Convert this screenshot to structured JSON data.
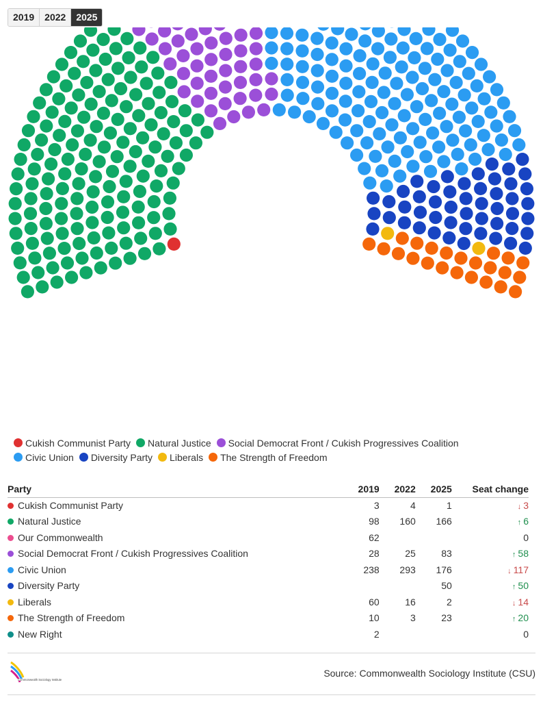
{
  "year_tabs": [
    {
      "label": "2019",
      "active": false
    },
    {
      "label": "2022",
      "active": false
    },
    {
      "label": "2025",
      "active": true
    }
  ],
  "chart_data": {
    "type": "hemicycle",
    "year": "2025",
    "total_seats": 501,
    "series": [
      {
        "name": "Cukish Communist Party",
        "seats": 1,
        "color": "#e03131"
      },
      {
        "name": "Natural Justice",
        "seats": 166,
        "color": "#10a866"
      },
      {
        "name": "Social Democrat Front / Cukish Progressives Coalition",
        "seats": 83,
        "color": "#9b4fd8"
      },
      {
        "name": "Civic Union",
        "seats": 176,
        "color": "#2b9cf2"
      },
      {
        "name": "Diversity Party",
        "seats": 50,
        "color": "#1844c2"
      },
      {
        "name": "Liberals",
        "seats": 2,
        "color": "#f2b90f"
      },
      {
        "name": "The Strength of Freedom",
        "seats": 23,
        "color": "#f5670a"
      }
    ]
  },
  "legend": {
    "rows": [
      [
        {
          "name": "Cukish Communist Party",
          "color": "#e03131"
        },
        {
          "name": "Natural Justice",
          "color": "#10a866"
        },
        {
          "name": "Social Democrat Front / Cukish Progressives Coalition",
          "color": "#9b4fd8"
        }
      ],
      [
        {
          "name": "Civic Union",
          "color": "#2b9cf2"
        },
        {
          "name": "Diversity Party",
          "color": "#1844c2"
        },
        {
          "name": "Liberals",
          "color": "#f2b90f"
        },
        {
          "name": "The Strength of Freedom",
          "color": "#f5670a"
        }
      ]
    ]
  },
  "table": {
    "headers": {
      "party": "Party",
      "y2019": "2019",
      "y2022": "2022",
      "y2025": "2025",
      "change": "Seat change"
    },
    "rows": [
      {
        "party": "Cukish Communist Party",
        "color": "#e03131",
        "y2019": "3",
        "y2022": "4",
        "y2025": "1",
        "change": "3",
        "direction": "down"
      },
      {
        "party": "Natural Justice",
        "color": "#10a866",
        "y2019": "98",
        "y2022": "160",
        "y2025": "166",
        "change": "6",
        "direction": "up"
      },
      {
        "party": "Our Commonwealth",
        "color": "#ec4d8f",
        "y2019": "62",
        "y2022": "",
        "y2025": "",
        "change": "0",
        "direction": "none"
      },
      {
        "party": "Social Democrat Front / Cukish Progressives Coalition",
        "color": "#9b4fd8",
        "y2019": "28",
        "y2022": "25",
        "y2025": "83",
        "change": "58",
        "direction": "up"
      },
      {
        "party": "Civic Union",
        "color": "#2b9cf2",
        "y2019": "238",
        "y2022": "293",
        "y2025": "176",
        "change": "117",
        "direction": "down"
      },
      {
        "party": "Diversity Party",
        "color": "#1844c2",
        "y2019": "",
        "y2022": "",
        "y2025": "50",
        "change": "50",
        "direction": "up"
      },
      {
        "party": "Liberals",
        "color": "#f2b90f",
        "y2019": "60",
        "y2022": "16",
        "y2025": "2",
        "change": "14",
        "direction": "down"
      },
      {
        "party": "The Strength of Freedom",
        "color": "#f5670a",
        "y2019": "10",
        "y2022": "3",
        "y2025": "23",
        "change": "20",
        "direction": "up"
      },
      {
        "party": "New Right",
        "color": "#0f8f8a",
        "y2019": "2",
        "y2022": "",
        "y2025": "",
        "change": "0",
        "direction": "none"
      }
    ]
  },
  "footer": {
    "source": "Source: Commonwealth Sociology Institute (CSU)",
    "logo_text": "Commonwealth Sociology Institute"
  }
}
